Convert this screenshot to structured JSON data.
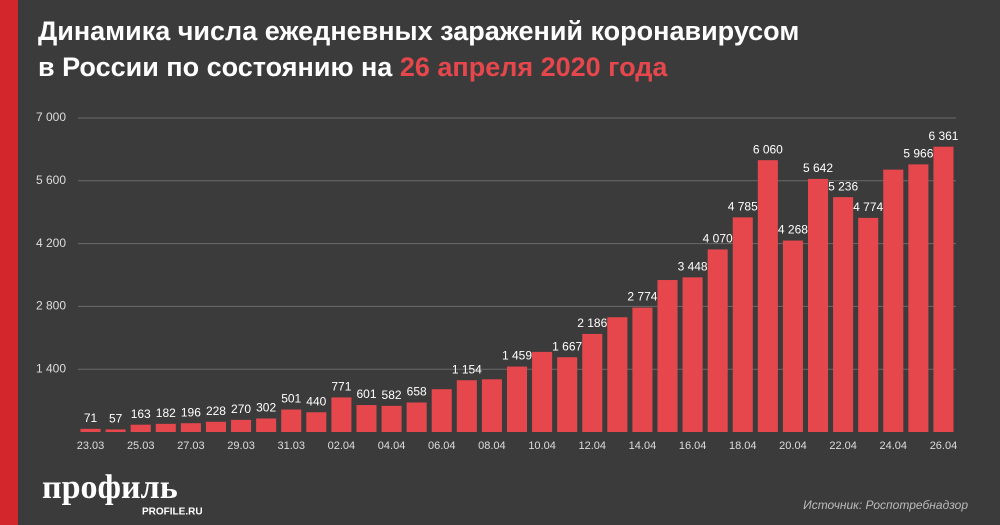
{
  "chart_data": {
    "type": "bar",
    "title": "Динамика числа ежедневных заражений коронавирусом",
    "title_line2": "в России по состоянию на",
    "title_highlight": "26 апреля 2020 года",
    "categories": [
      "23.03",
      null,
      "25.03",
      null,
      "27.03",
      null,
      "29.03",
      null,
      "31.03",
      null,
      "02.04",
      null,
      "04.04",
      null,
      "06.04",
      null,
      "08.04",
      null,
      "10.04",
      null,
      "12.04",
      null,
      "14.04",
      null,
      "16.04",
      null,
      "18.04",
      null,
      "20.04",
      null,
      "22.04",
      null,
      "24.04",
      null,
      "26.04"
    ],
    "values": [
      71,
      57,
      163,
      182,
      196,
      228,
      270,
      302,
      501,
      440,
      771,
      601,
      582,
      658,
      954,
      1154,
      1175,
      1459,
      1786,
      1667,
      2186,
      2558,
      2774,
      3388,
      3448,
      4070,
      4785,
      6060,
      4268,
      5642,
      5236,
      4774,
      5849,
      5966,
      6361
    ],
    "value_labels": [
      "71",
      "57",
      "163",
      "182",
      "196",
      "228",
      "270",
      "302",
      "501",
      "440",
      "771",
      "601",
      "582",
      "658",
      null,
      "1 154",
      null,
      "1 459",
      null,
      "1 667",
      "2 186",
      null,
      "2 774",
      null,
      "3 448",
      "4 070",
      "4 785",
      "6 060",
      "4 268",
      "5 642",
      "5 236",
      "4 774",
      null,
      "5 966",
      "6 361"
    ],
    "color": "#e5474c",
    "ylim": [
      0,
      7000
    ],
    "yticks": [
      {
        "value": 1400,
        "label": "1 400"
      },
      {
        "value": 2800,
        "label": "2 800"
      },
      {
        "value": 4200,
        "label": "4 200"
      },
      {
        "value": 5600,
        "label": "5 600"
      },
      {
        "value": 7000,
        "label": "7 000"
      }
    ],
    "grid": true,
    "source": "Источник: Роспотребнадзор",
    "logo": "профиль",
    "logo_site": "PROFILE.RU"
  }
}
